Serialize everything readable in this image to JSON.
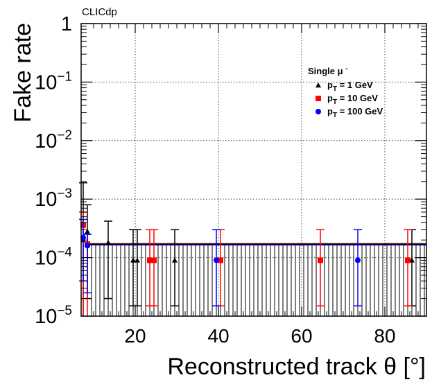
{
  "chart_data": {
    "type": "scatter",
    "annotation": "CLICdp",
    "xlabel": "Reconstructed track θ [°]",
    "ylabel": "Fake rate",
    "xlim": [
      7,
      90
    ],
    "ylim": [
      1e-05,
      1
    ],
    "y_scale": "log",
    "grid": true,
    "x_ticks": [
      {
        "value": 20,
        "label": "20"
      },
      {
        "value": 40,
        "label": "40"
      },
      {
        "value": 60,
        "label": "60"
      },
      {
        "value": 80,
        "label": "80"
      }
    ],
    "y_ticks": [
      {
        "value": 1,
        "base": "1",
        "exp": ""
      },
      {
        "value": 0.1,
        "base": "10",
        "exp": "−1"
      },
      {
        "value": 0.01,
        "base": "10",
        "exp": "−2"
      },
      {
        "value": 0.001,
        "base": "10",
        "exp": "−3"
      },
      {
        "value": 0.0001,
        "base": "10",
        "exp": "−4"
      },
      {
        "value": 1e-05,
        "base": "10",
        "exp": "−5"
      }
    ],
    "legend": {
      "title": "Single μ",
      "title_sup": "-",
      "placement": "top-right",
      "entries": [
        {
          "pre": "p",
          "sub": "T",
          "post": " = 1 GeV",
          "color": "#000000",
          "marker": "triangle"
        },
        {
          "pre": "p",
          "sub": "T",
          "post": " = 10 GeV",
          "color": "#ff0000",
          "marker": "square"
        },
        {
          "pre": "p",
          "sub": "T",
          "post": " = 100 GeV",
          "color": "#0000ff",
          "marker": "circle"
        }
      ]
    },
    "band_upper": 0.00017,
    "series": [
      {
        "name": "pT = 1 GeV",
        "color": "#000000",
        "marker": "triangle",
        "points": [
          {
            "x": 7.5,
            "y": 0.0002,
            "lo": 8.5e-06,
            "hi": 0.0019
          },
          {
            "x": 8.5,
            "y": 0.00028,
            "lo": 2e-05,
            "hi": 0.0008
          },
          {
            "x": 13.5,
            "y": 0.00018,
            "lo": 2e-05,
            "hi": 0.00042
          },
          {
            "x": 19.5,
            "y": 9e-05,
            "lo": 1.5e-05,
            "hi": 0.0003
          },
          {
            "x": 20.5,
            "y": 9e-05,
            "lo": 1.5e-05,
            "hi": 0.0003
          },
          {
            "x": 29.5,
            "y": 9e-05,
            "lo": 1.5e-05,
            "hi": 0.0003
          },
          {
            "x": 86.5,
            "y": 9e-05,
            "lo": 1.5e-05,
            "hi": 0.0003
          }
        ]
      },
      {
        "name": "pT = 10 GeV",
        "color": "#ff0000",
        "marker": "square",
        "points": [
          {
            "x": 7.5,
            "y": 0.00036,
            "lo": 8.5e-06,
            "hi": 0.0006
          },
          {
            "x": 8.5,
            "y": 0.00017,
            "lo": 8.5e-06,
            "hi": 0.00025
          },
          {
            "x": 23.5,
            "y": 9e-05,
            "lo": 1.5e-05,
            "hi": 0.0003
          },
          {
            "x": 24.5,
            "y": 9e-05,
            "lo": 1.5e-05,
            "hi": 0.0003
          },
          {
            "x": 40.5,
            "y": 9e-05,
            "lo": 1.5e-05,
            "hi": 0.0003
          },
          {
            "x": 64.5,
            "y": 9e-05,
            "lo": 1.5e-05,
            "hi": 0.0003
          },
          {
            "x": 85.5,
            "y": 9e-05,
            "lo": 1.5e-05,
            "hi": 0.0003
          }
        ]
      },
      {
        "name": "pT = 100 GeV",
        "color": "#0000ff",
        "marker": "circle",
        "points": [
          {
            "x": 7.5,
            "y": 0.00022,
            "lo": 4e-05,
            "hi": 0.00045
          },
          {
            "x": 8.5,
            "y": 0.00016,
            "lo": 2.5e-05,
            "hi": 0.00025
          },
          {
            "x": 39.5,
            "y": 9e-05,
            "lo": 1.5e-05,
            "hi": 0.0003
          },
          {
            "x": 73.5,
            "y": 9e-05,
            "lo": 1.5e-05,
            "hi": 0.0003
          }
        ]
      }
    ]
  }
}
